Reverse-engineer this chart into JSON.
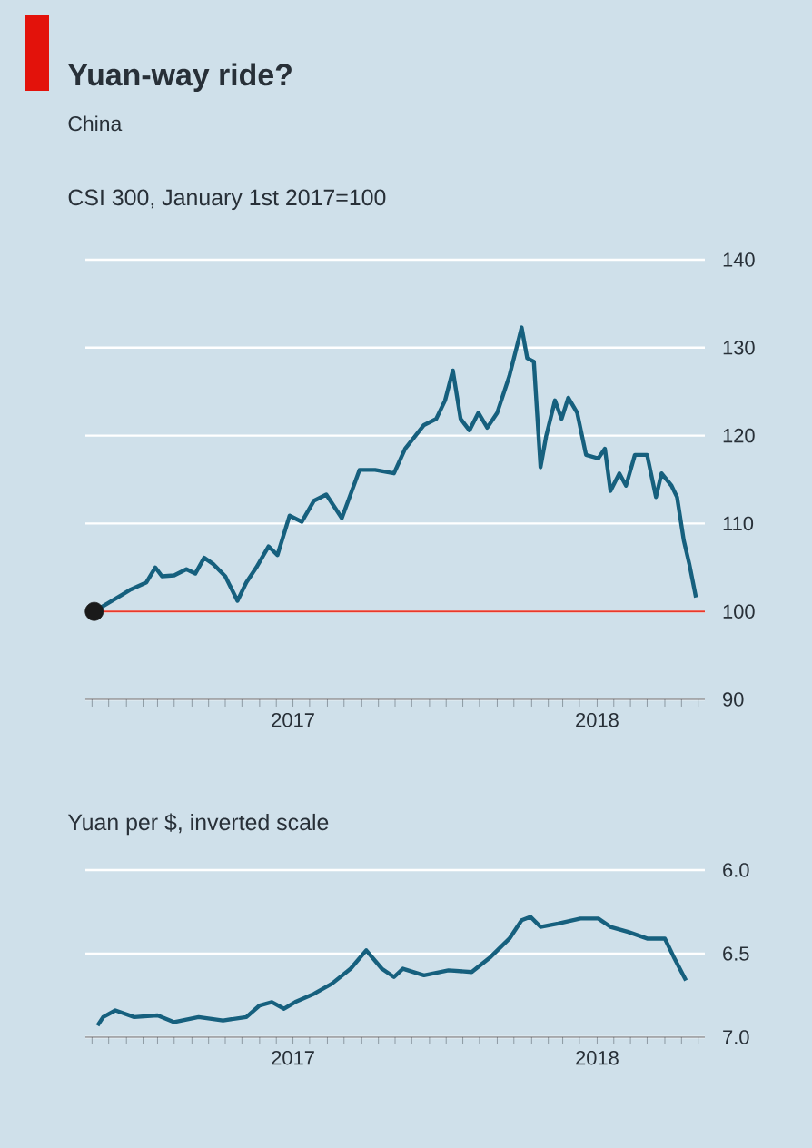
{
  "chart_data": [
    {
      "type": "line",
      "title": "Yuan-way ride?",
      "subtitle": "China",
      "ylabel": "CSI 300, January 1st 2017=100",
      "xlim": [
        "2016-12-26",
        "2018-07-07"
      ],
      "ylim": [
        90,
        140
      ],
      "yticks": [
        90,
        100,
        110,
        120,
        130,
        140
      ],
      "grid": "y",
      "xticks": [
        {
          "value": "2017-01-01",
          "label": null
        },
        {
          "value": "2017-01-16",
          "label": null
        },
        {
          "value": "2017-02-01",
          "label": null
        },
        {
          "value": "2017-02-16",
          "label": null
        },
        {
          "value": "2017-03-01",
          "label": null
        },
        {
          "value": "2017-03-16",
          "label": null
        },
        {
          "value": "2017-04-01",
          "label": null
        },
        {
          "value": "2017-04-16",
          "label": null
        },
        {
          "value": "2017-05-01",
          "label": null
        },
        {
          "value": "2017-05-16",
          "label": null
        },
        {
          "value": "2017-06-01",
          "label": null
        },
        {
          "value": "2017-06-16",
          "label": null
        },
        {
          "value": "2017-07-01",
          "label": "2017"
        },
        {
          "value": "2017-07-16",
          "label": null
        },
        {
          "value": "2017-08-01",
          "label": null
        },
        {
          "value": "2017-08-16",
          "label": null
        },
        {
          "value": "2017-09-01",
          "label": null
        },
        {
          "value": "2017-09-16",
          "label": null
        },
        {
          "value": "2017-10-01",
          "label": null
        },
        {
          "value": "2017-10-16",
          "label": null
        },
        {
          "value": "2017-11-01",
          "label": null
        },
        {
          "value": "2017-11-16",
          "label": null
        },
        {
          "value": "2017-12-01",
          "label": null
        },
        {
          "value": "2017-12-16",
          "label": null
        },
        {
          "value": "2018-01-01",
          "label": null
        },
        {
          "value": "2018-01-16",
          "label": null
        },
        {
          "value": "2018-02-01",
          "label": null
        },
        {
          "value": "2018-02-16",
          "label": null
        },
        {
          "value": "2018-03-01",
          "label": null
        },
        {
          "value": "2018-03-16",
          "label": null
        },
        {
          "value": "2018-04-01",
          "label": "2018"
        },
        {
          "value": "2018-04-16",
          "label": null
        },
        {
          "value": "2018-05-01",
          "label": null
        },
        {
          "value": "2018-05-16",
          "label": null
        },
        {
          "value": "2018-06-01",
          "label": null
        },
        {
          "value": "2018-06-16",
          "label": null
        },
        {
          "value": "2018-07-01",
          "label": null
        }
      ],
      "ref_lines": [
        {
          "axis": "y",
          "value": 100,
          "color": "#e8392b"
        }
      ],
      "series": [
        {
          "color": "#16607e",
          "x": [
            "2017-01-03",
            "2017-01-28",
            "2017-02-05",
            "2017-02-19",
            "2017-02-27",
            "2017-03-05",
            "2017-03-16",
            "2017-03-27",
            "2017-04-04",
            "2017-04-12",
            "2017-04-20",
            "2017-05-01",
            "2017-05-12",
            "2017-05-20",
            "2017-05-29",
            "2017-06-09",
            "2017-06-17",
            "2017-06-28",
            "2017-07-09",
            "2017-07-20",
            "2017-07-31",
            "2017-08-14",
            "2017-08-30",
            "2017-09-13",
            "2017-09-30",
            "2017-10-10",
            "2017-10-27",
            "2017-11-07",
            "2017-11-15",
            "2017-11-22",
            "2017-11-29",
            "2017-12-07",
            "2017-12-15",
            "2017-12-23",
            "2018-01-01",
            "2018-01-12",
            "2018-01-23",
            "2018-01-28",
            "2018-02-03",
            "2018-02-09",
            "2018-02-14",
            "2018-02-22",
            "2018-02-28",
            "2018-03-06",
            "2018-03-14",
            "2018-03-22",
            "2018-04-02",
            "2018-04-08",
            "2018-04-13",
            "2018-04-21",
            "2018-04-27",
            "2018-05-05",
            "2018-05-16",
            "2018-05-24",
            "2018-05-29",
            "2018-06-07",
            "2018-06-12",
            "2018-06-18",
            "2018-06-23",
            "2018-06-29"
          ],
          "values": [
            100,
            101.9,
            102.5,
            103.3,
            105,
            104,
            104.1,
            104.8,
            104.3,
            106.1,
            105.4,
            104,
            101.2,
            103.3,
            105,
            107.4,
            106.4,
            110.9,
            110.2,
            112.6,
            113.3,
            110.6,
            116.1,
            116.1,
            115.7,
            118.5,
            121.2,
            121.9,
            124,
            127.4,
            121.9,
            120.6,
            122.6,
            120.9,
            122.6,
            126.8,
            132.3,
            128.8,
            128.4,
            116.4,
            119.9,
            124,
            121.9,
            124.3,
            122.6,
            117.8,
            117.4,
            118.5,
            113.7,
            115.7,
            114.3,
            117.8,
            117.8,
            113,
            115.7,
            114.3,
            113,
            108.1,
            105.4,
            101.6
          ]
        },
        {
          "type": "scatter",
          "marker": "circle",
          "color": "#1a1a1a",
          "x": [
            "2017-01-03"
          ],
          "values": [
            100
          ]
        }
      ]
    },
    {
      "type": "line",
      "ylabel": "Yuan per $, inverted scale",
      "xlim": [
        "2016-12-26",
        "2018-07-07"
      ],
      "ylim": [
        7.0,
        6.0
      ],
      "yticks": [
        {
          "value": 6.0,
          "label": "6.0"
        },
        {
          "value": 6.5,
          "label": "6.5"
        },
        {
          "value": 7.0,
          "label": "7.0"
        }
      ],
      "grid": "y",
      "xticks": [
        {
          "value": "2017-01-01",
          "label": null
        },
        {
          "value": "2017-01-16",
          "label": null
        },
        {
          "value": "2017-02-01",
          "label": null
        },
        {
          "value": "2017-02-16",
          "label": null
        },
        {
          "value": "2017-03-01",
          "label": null
        },
        {
          "value": "2017-03-16",
          "label": null
        },
        {
          "value": "2017-04-01",
          "label": null
        },
        {
          "value": "2017-04-16",
          "label": null
        },
        {
          "value": "2017-05-01",
          "label": null
        },
        {
          "value": "2017-05-16",
          "label": null
        },
        {
          "value": "2017-06-01",
          "label": null
        },
        {
          "value": "2017-06-16",
          "label": null
        },
        {
          "value": "2017-07-01",
          "label": "2017"
        },
        {
          "value": "2017-07-16",
          "label": null
        },
        {
          "value": "2017-08-01",
          "label": null
        },
        {
          "value": "2017-08-16",
          "label": null
        },
        {
          "value": "2017-09-01",
          "label": null
        },
        {
          "value": "2017-09-16",
          "label": null
        },
        {
          "value": "2017-10-01",
          "label": null
        },
        {
          "value": "2017-10-16",
          "label": null
        },
        {
          "value": "2017-11-01",
          "label": null
        },
        {
          "value": "2017-11-16",
          "label": null
        },
        {
          "value": "2017-12-01",
          "label": null
        },
        {
          "value": "2017-12-16",
          "label": null
        },
        {
          "value": "2018-01-01",
          "label": null
        },
        {
          "value": "2018-01-16",
          "label": null
        },
        {
          "value": "2018-02-01",
          "label": null
        },
        {
          "value": "2018-02-16",
          "label": null
        },
        {
          "value": "2018-03-01",
          "label": null
        },
        {
          "value": "2018-03-16",
          "label": null
        },
        {
          "value": "2018-04-01",
          "label": "2018"
        },
        {
          "value": "2018-04-16",
          "label": null
        },
        {
          "value": "2018-05-01",
          "label": null
        },
        {
          "value": "2018-05-16",
          "label": null
        },
        {
          "value": "2018-06-01",
          "label": null
        },
        {
          "value": "2018-06-16",
          "label": null
        },
        {
          "value": "2018-07-01",
          "label": null
        }
      ],
      "series": [
        {
          "color": "#16607e",
          "x": [
            "2017-01-06",
            "2017-01-11",
            "2017-01-22",
            "2017-02-08",
            "2017-03-01",
            "2017-03-16",
            "2017-04-07",
            "2017-04-29",
            "2017-05-20",
            "2017-06-01",
            "2017-06-12",
            "2017-06-23",
            "2017-07-03",
            "2017-07-20",
            "2017-08-05",
            "2017-08-22",
            "2017-09-05",
            "2017-09-19",
            "2017-09-30",
            "2017-10-08",
            "2017-10-27",
            "2017-11-18",
            "2017-12-09",
            "2017-12-26",
            "2018-01-12",
            "2018-01-23",
            "2018-01-31",
            "2018-02-09",
            "2018-02-25",
            "2018-03-17",
            "2018-04-02",
            "2018-04-13",
            "2018-04-29",
            "2018-05-16",
            "2018-06-01",
            "2018-06-09",
            "2018-06-20"
          ],
          "values": [
            6.93,
            6.88,
            6.84,
            6.88,
            6.87,
            6.91,
            6.88,
            6.9,
            6.88,
            6.81,
            6.79,
            6.83,
            6.79,
            6.74,
            6.68,
            6.59,
            6.48,
            6.59,
            6.64,
            6.59,
            6.63,
            6.6,
            6.61,
            6.52,
            6.41,
            6.3,
            6.28,
            6.34,
            6.32,
            6.29,
            6.29,
            6.34,
            6.37,
            6.41,
            6.41,
            6.52,
            6.66
          ]
        }
      ]
    }
  ]
}
